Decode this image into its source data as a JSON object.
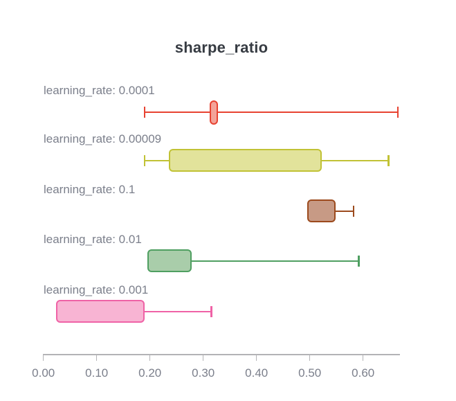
{
  "title": "sharpe_ratio",
  "chart_data": {
    "type": "box",
    "orientation": "horizontal",
    "title": "sharpe_ratio",
    "xlabel": "",
    "ylabel": "",
    "x_range": [
      0.0,
      0.67
    ],
    "grid": false,
    "legend_position": "none",
    "axis": {
      "tick_values": [
        0.0,
        0.1,
        0.2,
        0.3,
        0.4,
        0.5,
        0.6
      ],
      "tick_labels": [
        "0.00",
        "0.10",
        "0.20",
        "0.30",
        "0.40",
        "0.50",
        "0.60"
      ]
    },
    "series": [
      {
        "label": "learning_rate: 0.0001",
        "whisker_low": 0.19,
        "q1": 0.312,
        "q3": 0.328,
        "whisker_high": 0.665,
        "stroke_color": "#e74231",
        "fill_color": "#f3a399"
      },
      {
        "label": "learning_rate: 0.00009",
        "whisker_low": 0.19,
        "q1": 0.235,
        "q3": 0.522,
        "whisker_high": 0.648,
        "stroke_color": "#c1c235",
        "fill_color": "#e2e39b"
      },
      {
        "label": "learning_rate: 0.1",
        "whisker_low": null,
        "q1": 0.495,
        "q3": 0.548,
        "whisker_high": 0.582,
        "stroke_color": "#9c4a1d",
        "fill_color": "#c79a85"
      },
      {
        "label": "learning_rate: 0.01",
        "whisker_low": null,
        "q1": 0.195,
        "q3": 0.278,
        "whisker_high": 0.592,
        "stroke_color": "#4f9f61",
        "fill_color": "#a9cdaa"
      },
      {
        "label": "learning_rate: 0.001",
        "whisker_low": null,
        "q1": 0.024,
        "q3": 0.19,
        "whisker_high": 0.315,
        "stroke_color": "#ef62a6",
        "fill_color": "#f8b4d3"
      }
    ]
  }
}
